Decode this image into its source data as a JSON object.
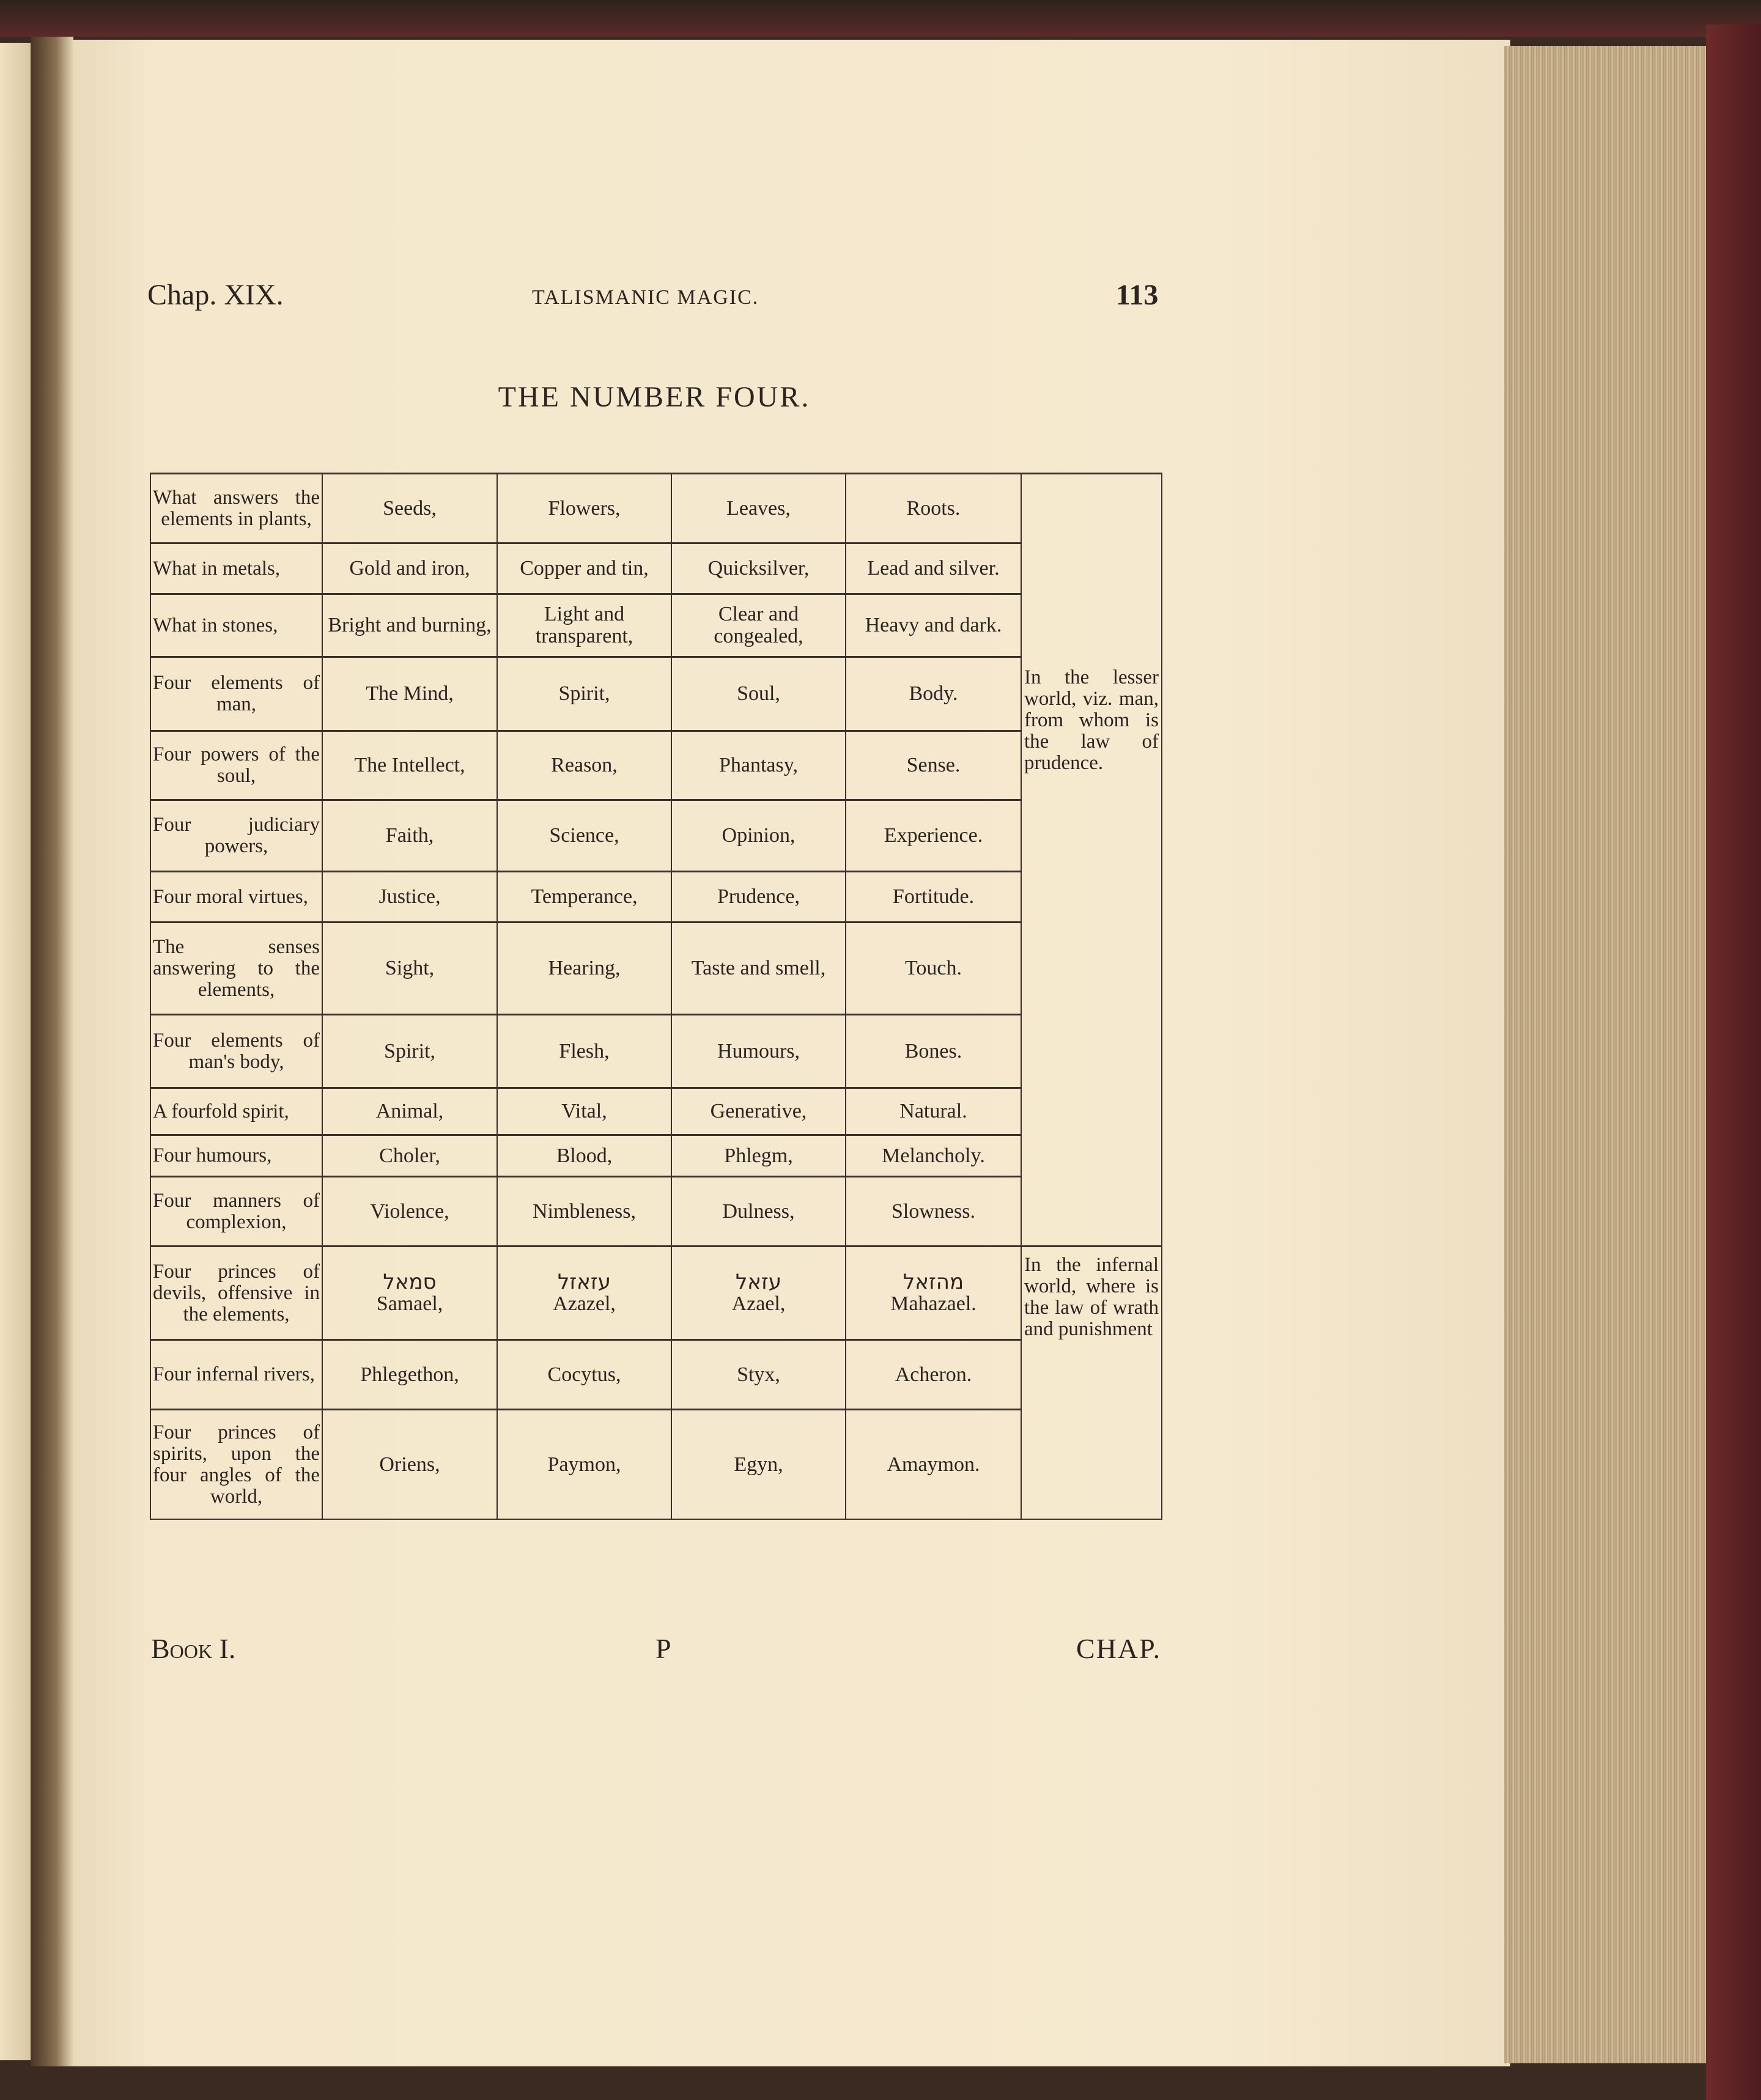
{
  "header": {
    "chapter": "Chap. XIX.",
    "running_title": "TALISMANIC MAGIC.",
    "page_number": "113"
  },
  "title": "THE NUMBER FOUR.",
  "rows": [
    {
      "label": "What answers the elements in plants,",
      "values": [
        "Seeds,",
        "Flowers,",
        "Leaves,",
        "Roots."
      ]
    },
    {
      "label": "What in metals,",
      "values": [
        "Gold and iron,",
        "Copper and tin,",
        "Quicksilver,",
        "Lead and silver."
      ]
    },
    {
      "label": "What in stones,",
      "values": [
        "Bright and burning,",
        "Light and transparent,",
        "Clear and congealed,",
        "Heavy and dark."
      ]
    },
    {
      "label": "Four elements of man,",
      "values": [
        "The Mind,",
        "Spirit,",
        "Soul,",
        "Body."
      ]
    },
    {
      "label": "Four powers of the soul,",
      "values": [
        "The Intellect,",
        "Reason,",
        "Phantasy,",
        "Sense."
      ]
    },
    {
      "label": "Four judiciary powers,",
      "values": [
        "Faith,",
        "Science,",
        "Opinion,",
        "Experience."
      ]
    },
    {
      "label": "Four moral virtues,",
      "values": [
        "Justice,",
        "Temperance,",
        "Prudence,",
        "Fortitude."
      ]
    },
    {
      "label": "The senses answering to the elements,",
      "values": [
        "Sight,",
        "Hearing,",
        "Taste and smell,",
        "Touch."
      ]
    },
    {
      "label": "Four elements of man's body,",
      "values": [
        "Spirit,",
        "Flesh,",
        "Humours,",
        "Bones."
      ]
    },
    {
      "label": "A fourfold spirit,",
      "values": [
        "Animal,",
        "Vital,",
        "Generative,",
        "Natural."
      ]
    },
    {
      "label": "Four humours,",
      "values": [
        "Choler,",
        "Blood,",
        "Phlegm,",
        "Melancholy."
      ]
    },
    {
      "label": "Four manners of complexion,",
      "values": [
        "Violence,",
        "Nimbleness,",
        "Dulness,",
        "Slowness."
      ]
    },
    {
      "label": "Four princes of devils, offensive in the elements,",
      "values": [
        "Samael,",
        "Azazel,",
        "Azael,",
        "Mahazael."
      ],
      "hebrew": [
        "סמאל",
        "עזאזל",
        "עזאל",
        "מהזאל"
      ]
    },
    {
      "label": "Four infernal rivers,",
      "values": [
        "Phlegethon,",
        "Cocytus,",
        "Styx,",
        "Acheron."
      ]
    },
    {
      "label": "Four princes of spirits, upon the four angles of the world,",
      "values": [
        "Oriens,",
        "Paymon,",
        "Egyn,",
        "Amaymon."
      ]
    }
  ],
  "side_notes": {
    "lesser": "In the lesser world, viz. man, from whom is the law of prudence.",
    "infernal": "In the infernal world, where is the law of wrath and punishment"
  },
  "footer": {
    "signature": "Book I.",
    "signature_mark": "P",
    "catchword": "CHAP."
  }
}
